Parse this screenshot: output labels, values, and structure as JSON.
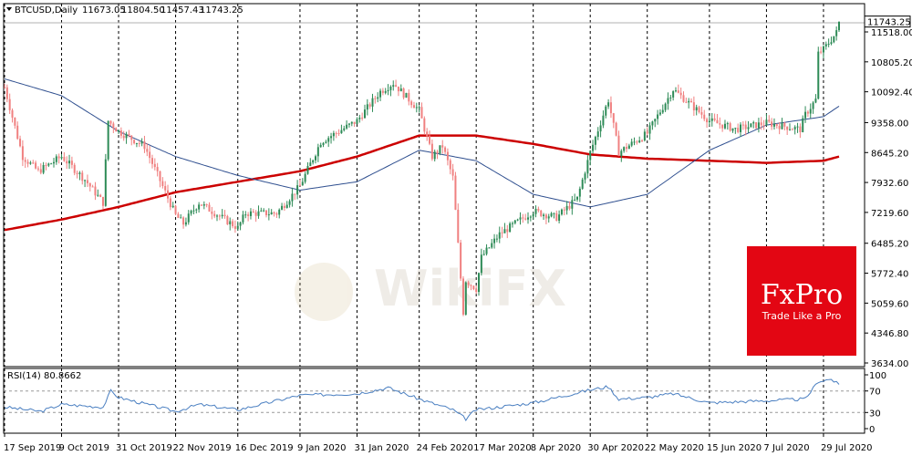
{
  "header": {
    "symbol": "BTCUSD,Daily",
    "open": "11673.05",
    "high": "11804.50",
    "low": "11457.43",
    "close": "11743.25"
  },
  "last_price_tag": "11743.25",
  "rsi_label": "RSI(14) 80.8662",
  "watermark": {
    "brand": "FxPro",
    "tagline": "Trade Like a Pro",
    "faint_brand": "WikiFX",
    "colors": {
      "box": "#e30613",
      "text": "#ffffff"
    }
  },
  "colors": {
    "bull": "#2e8b57",
    "bear": "#f08080",
    "ma_fast": "#2f4f8f",
    "ma_slow": "#cc0000",
    "rsi_line": "#4a7fc1",
    "grid": "#000000"
  },
  "chart_data": [
    {
      "type": "candlestick",
      "symbol": "BTCUSD",
      "timeframe": "Daily",
      "y_ticks": [
        "11518.00",
        "10805.20",
        "10092.40",
        "9358.00",
        "8645.20",
        "7932.60",
        "7219.60",
        "6485.20",
        "5772.40",
        "5059.60",
        "4346.80",
        "3634.00"
      ],
      "ylim": [
        3634,
        11900
      ],
      "x_ticks": [
        "17 Sep 2019",
        "9 Oct 2019",
        "31 Oct 2019",
        "22 Nov 2019",
        "16 Dec 2019",
        "9 Jan 2020",
        "31 Jan 2020",
        "24 Feb 2020",
        "17 Mar 2020",
        "8 Apr 2020",
        "30 Apr 2020",
        "22 May 2020",
        "15 Jun 2020",
        "7 Jul 2020",
        "29 Jul 2020"
      ],
      "anchors": [
        {
          "d": "17 Sep 2019",
          "v": 10200
        },
        {
          "d": "24 Sep 2019",
          "v": 8550
        },
        {
          "d": "30 Sep 2019",
          "v": 8200
        },
        {
          "d": "9 Oct 2019",
          "v": 8550
        },
        {
          "d": "18 Oct 2019",
          "v": 8000
        },
        {
          "d": "25 Oct 2019",
          "v": 7450
        },
        {
          "d": "27 Oct 2019",
          "v": 9400
        },
        {
          "d": "31 Oct 2019",
          "v": 9150
        },
        {
          "d": "10 Nov 2019",
          "v": 8800
        },
        {
          "d": "22 Nov 2019",
          "v": 7150
        },
        {
          "d": "25 Nov 2019",
          "v": 6950
        },
        {
          "d": "1 Dec 2019",
          "v": 7450
        },
        {
          "d": "16 Dec 2019",
          "v": 6850
        },
        {
          "d": "19 Dec 2019",
          "v": 7200
        },
        {
          "d": "31 Dec 2019",
          "v": 7200
        },
        {
          "d": "9 Jan 2020",
          "v": 7850
        },
        {
          "d": "17 Jan 2020",
          "v": 8900
        },
        {
          "d": "31 Jan 2020",
          "v": 9400
        },
        {
          "d": "9 Feb 2020",
          "v": 10100
        },
        {
          "d": "14 Feb 2020",
          "v": 10300
        },
        {
          "d": "24 Feb 2020",
          "v": 9650
        },
        {
          "d": "29 Feb 2020",
          "v": 8550
        },
        {
          "d": "4 Mar 2020",
          "v": 8800
        },
        {
          "d": "8 Mar 2020",
          "v": 8050
        },
        {
          "d": "12 Mar 2020",
          "v": 4850
        },
        {
          "d": "13 Mar 2020",
          "v": 5600
        },
        {
          "d": "17 Mar 2020",
          "v": 5400
        },
        {
          "d": "19 Mar 2020",
          "v": 6150
        },
        {
          "d": "26 Mar 2020",
          "v": 6700
        },
        {
          "d": "8 Apr 2020",
          "v": 7250
        },
        {
          "d": "17 Apr 2020",
          "v": 7100
        },
        {
          "d": "25 Apr 2020",
          "v": 7550
        },
        {
          "d": "30 Apr 2020",
          "v": 8650
        },
        {
          "d": "7 May 2020",
          "v": 9900
        },
        {
          "d": "11 May 2020",
          "v": 8650
        },
        {
          "d": "22 May 2020",
          "v": 9100
        },
        {
          "d": "1 Jun 2020",
          "v": 10150
        },
        {
          "d": "15 Jun 2020",
          "v": 9400
        },
        {
          "d": "25 Jun 2020",
          "v": 9200
        },
        {
          "d": "7 Jul 2020",
          "v": 9350
        },
        {
          "d": "20 Jul 2020",
          "v": 9200
        },
        {
          "d": "22 Jul 2020",
          "v": 9550
        },
        {
          "d": "26 Jul 2020",
          "v": 9900
        },
        {
          "d": "27 Jul 2020",
          "v": 11000
        },
        {
          "d": "29 Jul 2020",
          "v": 11100
        },
        {
          "d": "3 Aug 2020",
          "v": 11500
        },
        {
          "d": "4 Aug 2020",
          "v": 11743
        }
      ],
      "ma_fast": [
        {
          "d": "17 Sep 2019",
          "v": 10400
        },
        {
          "d": "9 Oct 2019",
          "v": 10000
        },
        {
          "d": "31 Oct 2019",
          "v": 9150
        },
        {
          "d": "22 Nov 2019",
          "v": 8550
        },
        {
          "d": "16 Dec 2019",
          "v": 8100
        },
        {
          "d": "9 Jan 2020",
          "v": 7750
        },
        {
          "d": "31 Jan 2020",
          "v": 7950
        },
        {
          "d": "24 Feb 2020",
          "v": 8700
        },
        {
          "d": "17 Mar 2020",
          "v": 8450
        },
        {
          "d": "8 Apr 2020",
          "v": 7650
        },
        {
          "d": "30 Apr 2020",
          "v": 7350
        },
        {
          "d": "22 May 2020",
          "v": 7650
        },
        {
          "d": "15 Jun 2020",
          "v": 8700
        },
        {
          "d": "7 Jul 2020",
          "v": 9300
        },
        {
          "d": "29 Jul 2020",
          "v": 9500
        },
        {
          "d": "4 Aug 2020",
          "v": 9750
        }
      ],
      "ma_slow": [
        {
          "d": "17 Sep 2019",
          "v": 6800
        },
        {
          "d": "9 Oct 2019",
          "v": 7050
        },
        {
          "d": "31 Oct 2019",
          "v": 7350
        },
        {
          "d": "22 Nov 2019",
          "v": 7700
        },
        {
          "d": "16 Dec 2019",
          "v": 7950
        },
        {
          "d": "9 Jan 2020",
          "v": 8200
        },
        {
          "d": "31 Jan 2020",
          "v": 8550
        },
        {
          "d": "24 Feb 2020",
          "v": 9050
        },
        {
          "d": "17 Mar 2020",
          "v": 9050
        },
        {
          "d": "8 Apr 2020",
          "v": 8850
        },
        {
          "d": "30 Apr 2020",
          "v": 8600
        },
        {
          "d": "22 May 2020",
          "v": 8500
        },
        {
          "d": "15 Jun 2020",
          "v": 8450
        },
        {
          "d": "7 Jul 2020",
          "v": 8400
        },
        {
          "d": "29 Jul 2020",
          "v": 8450
        },
        {
          "d": "4 Aug 2020",
          "v": 8550
        }
      ]
    },
    {
      "type": "line",
      "title": "RSI(14) 80.8662",
      "y_ticks": [
        "100",
        "70",
        "30",
        "0"
      ],
      "ylim": [
        0,
        100
      ],
      "levels": [
        70,
        30
      ],
      "anchors": [
        {
          "d": "17 Sep 2019",
          "v": 40
        },
        {
          "d": "1 Oct 2019",
          "v": 32
        },
        {
          "d": "9 Oct 2019",
          "v": 45
        },
        {
          "d": "25 Oct 2019",
          "v": 40
        },
        {
          "d": "28 Oct 2019",
          "v": 70
        },
        {
          "d": "31 Oct 2019",
          "v": 58
        },
        {
          "d": "22 Nov 2019",
          "v": 32
        },
        {
          "d": "1 Dec 2019",
          "v": 45
        },
        {
          "d": "16 Dec 2019",
          "v": 35
        },
        {
          "d": "9 Jan 2020",
          "v": 62
        },
        {
          "d": "31 Jan 2020",
          "v": 65
        },
        {
          "d": "12 Feb 2020",
          "v": 76
        },
        {
          "d": "24 Feb 2020",
          "v": 55
        },
        {
          "d": "8 Mar 2020",
          "v": 35
        },
        {
          "d": "13 Mar 2020",
          "v": 18
        },
        {
          "d": "17 Mar 2020",
          "v": 35
        },
        {
          "d": "8 Apr 2020",
          "v": 48
        },
        {
          "d": "30 Apr 2020",
          "v": 72
        },
        {
          "d": "7 May 2020",
          "v": 78
        },
        {
          "d": "11 May 2020",
          "v": 55
        },
        {
          "d": "22 May 2020",
          "v": 58
        },
        {
          "d": "1 Jun 2020",
          "v": 65
        },
        {
          "d": "15 Jun 2020",
          "v": 48
        },
        {
          "d": "7 Jul 2020",
          "v": 52
        },
        {
          "d": "22 Jul 2020",
          "v": 55
        },
        {
          "d": "27 Jul 2020",
          "v": 88
        },
        {
          "d": "1 Aug 2020",
          "v": 92
        },
        {
          "d": "4 Aug 2020",
          "v": 81
        }
      ]
    }
  ]
}
